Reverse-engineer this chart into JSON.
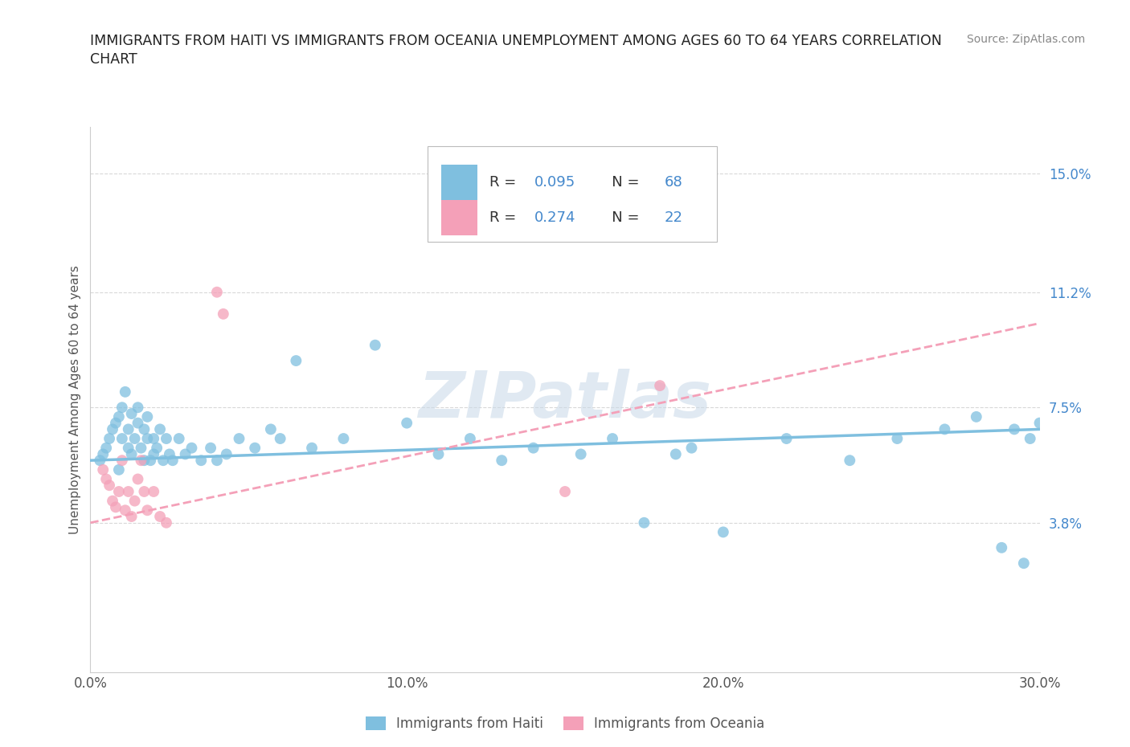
{
  "title_line1": "IMMIGRANTS FROM HAITI VS IMMIGRANTS FROM OCEANIA UNEMPLOYMENT AMONG AGES 60 TO 64 YEARS CORRELATION",
  "title_line2": "CHART",
  "source_text": "Source: ZipAtlas.com",
  "ylabel": "Unemployment Among Ages 60 to 64 years",
  "xmin": 0.0,
  "xmax": 0.3,
  "ymin": -0.01,
  "ymax": 0.165,
  "yticks": [
    0.038,
    0.075,
    0.112,
    0.15
  ],
  "ytick_labels": [
    "3.8%",
    "7.5%",
    "11.2%",
    "15.0%"
  ],
  "xticks": [
    0.0,
    0.1,
    0.2,
    0.3
  ],
  "xtick_labels": [
    "0.0%",
    "10.0%",
    "20.0%",
    "30.0%"
  ],
  "haiti_color": "#7fbfdf",
  "oceania_color": "#f4a0b8",
  "legend_R_color": "#4488cc",
  "haiti_R": "0.095",
  "haiti_N": "68",
  "oceania_R": "0.274",
  "oceania_N": "22",
  "haiti_scatter_x": [
    0.003,
    0.004,
    0.005,
    0.006,
    0.007,
    0.008,
    0.009,
    0.009,
    0.01,
    0.01,
    0.011,
    0.012,
    0.012,
    0.013,
    0.013,
    0.014,
    0.015,
    0.015,
    0.016,
    0.017,
    0.017,
    0.018,
    0.018,
    0.019,
    0.02,
    0.02,
    0.021,
    0.022,
    0.023,
    0.024,
    0.025,
    0.026,
    0.028,
    0.03,
    0.032,
    0.035,
    0.038,
    0.04,
    0.043,
    0.047,
    0.052,
    0.057,
    0.06,
    0.065,
    0.07,
    0.08,
    0.09,
    0.1,
    0.11,
    0.12,
    0.13,
    0.14,
    0.155,
    0.165,
    0.175,
    0.185,
    0.19,
    0.2,
    0.22,
    0.24,
    0.255,
    0.27,
    0.28,
    0.288,
    0.292,
    0.295,
    0.297,
    0.3
  ],
  "haiti_scatter_y": [
    0.058,
    0.06,
    0.062,
    0.065,
    0.068,
    0.07,
    0.055,
    0.072,
    0.065,
    0.075,
    0.08,
    0.062,
    0.068,
    0.073,
    0.06,
    0.065,
    0.07,
    0.075,
    0.062,
    0.058,
    0.068,
    0.065,
    0.072,
    0.058,
    0.06,
    0.065,
    0.062,
    0.068,
    0.058,
    0.065,
    0.06,
    0.058,
    0.065,
    0.06,
    0.062,
    0.058,
    0.062,
    0.058,
    0.06,
    0.065,
    0.062,
    0.068,
    0.065,
    0.09,
    0.062,
    0.065,
    0.095,
    0.07,
    0.06,
    0.065,
    0.058,
    0.062,
    0.06,
    0.065,
    0.038,
    0.06,
    0.062,
    0.035,
    0.065,
    0.058,
    0.065,
    0.068,
    0.072,
    0.03,
    0.068,
    0.025,
    0.065,
    0.07
  ],
  "oceania_scatter_x": [
    0.004,
    0.005,
    0.006,
    0.007,
    0.008,
    0.009,
    0.01,
    0.011,
    0.012,
    0.013,
    0.014,
    0.015,
    0.016,
    0.017,
    0.018,
    0.02,
    0.022,
    0.024,
    0.04,
    0.042,
    0.15,
    0.18
  ],
  "oceania_scatter_y": [
    0.055,
    0.052,
    0.05,
    0.045,
    0.043,
    0.048,
    0.058,
    0.042,
    0.048,
    0.04,
    0.045,
    0.052,
    0.058,
    0.048,
    0.042,
    0.048,
    0.04,
    0.038,
    0.112,
    0.105,
    0.048,
    0.082
  ],
  "background_color": "#ffffff",
  "grid_color": "#d8d8d8",
  "haiti_trend_x": [
    0.0,
    0.3
  ],
  "haiti_trend_y": [
    0.058,
    0.068
  ],
  "oceania_trend_x": [
    0.0,
    0.3
  ],
  "oceania_trend_y": [
    0.038,
    0.102
  ],
  "watermark": "ZIPatlas"
}
